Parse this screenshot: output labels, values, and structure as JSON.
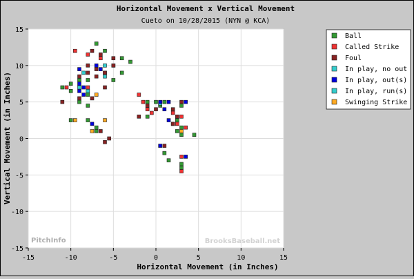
{
  "chart_data": {
    "type": "scatter",
    "title": "Horizontal Movement x Vertical Movement",
    "subtitle": "Cueto on 10/28/2015 (NYN @ KCA)",
    "xlabel": "Horizontal Movement (in Inches)",
    "ylabel": "Vertical Movement (in Inches)",
    "xlim": [
      -15,
      15
    ],
    "ylim": [
      -15,
      15
    ],
    "xticks": [
      "-15",
      "-10",
      "-5",
      "0",
      "5",
      "10",
      "15"
    ],
    "yticks": [
      "15",
      "10",
      "5",
      "0",
      "-5",
      "-10",
      "-15"
    ],
    "grid": true,
    "legend_position": "top-right, outside plot",
    "watermarks": {
      "left": "PitchInfo",
      "right": "BrooksBaseball.net"
    },
    "series": [
      {
        "name": "Ball",
        "color": "#339933",
        "points": [
          [
            -7,
            13
          ],
          [
            -6,
            12
          ],
          [
            -4,
            11
          ],
          [
            -3,
            10.5
          ],
          [
            -5,
            10
          ],
          [
            -4,
            9
          ],
          [
            -5,
            8
          ],
          [
            -6,
            9
          ],
          [
            -8,
            8
          ],
          [
            -9,
            8
          ],
          [
            -10,
            7.5
          ],
          [
            -11,
            7
          ],
          [
            -10,
            6.5
          ],
          [
            -8,
            6
          ],
          [
            -9,
            5
          ],
          [
            -8,
            4.5
          ],
          [
            -8,
            2.5
          ],
          [
            -10,
            2.5
          ],
          [
            -7,
            1.5
          ],
          [
            -7,
            1
          ],
          [
            0,
            5
          ],
          [
            -1,
            5
          ],
          [
            1,
            5
          ],
          [
            0.5,
            4.5
          ],
          [
            -1,
            3
          ],
          [
            2,
            2
          ],
          [
            2.5,
            2.5
          ],
          [
            3,
            1.5
          ],
          [
            2.5,
            1
          ],
          [
            3,
            0.5
          ],
          [
            4.5,
            0.5
          ],
          [
            1,
            -2
          ],
          [
            1.5,
            -3
          ],
          [
            3,
            -3.5
          ],
          [
            3,
            -4
          ],
          [
            3,
            4.5
          ]
        ]
      },
      {
        "name": "Called Strike",
        "color": "#ee3333",
        "points": [
          [
            -9.5,
            12
          ],
          [
            -8,
            11.5
          ],
          [
            -6.5,
            11
          ],
          [
            -10.5,
            7
          ],
          [
            -8,
            7
          ],
          [
            -2,
            6
          ],
          [
            -1.5,
            5
          ],
          [
            -1,
            4
          ],
          [
            -0.5,
            3.5
          ],
          [
            2,
            3.5
          ],
          [
            3,
            3
          ],
          [
            2.5,
            2
          ],
          [
            3.5,
            1.5
          ],
          [
            3,
            -2.5
          ],
          [
            3,
            -4.5
          ]
        ]
      },
      {
        "name": "Foul",
        "color": "#882222",
        "points": [
          [
            -7.5,
            12
          ],
          [
            -6.5,
            11.5
          ],
          [
            -8,
            10
          ],
          [
            -7,
            9.5
          ],
          [
            -6,
            9
          ],
          [
            -5,
            10
          ],
          [
            -5,
            11
          ],
          [
            -8,
            9
          ],
          [
            -9,
            8.5
          ],
          [
            -7,
            8.5
          ],
          [
            -6,
            7
          ],
          [
            -11,
            5
          ],
          [
            -9,
            5.5
          ],
          [
            -7.5,
            5.5
          ],
          [
            -6.5,
            1
          ],
          [
            -6,
            -0.5
          ],
          [
            -5.5,
            0
          ],
          [
            -1,
            4.5
          ],
          [
            0,
            4
          ],
          [
            2,
            4
          ],
          [
            2.5,
            3
          ],
          [
            2,
            2
          ],
          [
            -2,
            3
          ],
          [
            3,
            5
          ],
          [
            1,
            -1
          ]
        ]
      },
      {
        "name": "In play, no out",
        "color": "#33cccc",
        "points": [
          [
            -8.5,
            9
          ],
          [
            -6,
            10
          ],
          [
            -9,
            7
          ],
          [
            -8,
            6.5
          ],
          [
            -6,
            8.5
          ],
          [
            0.5,
            4.8
          ]
        ]
      },
      {
        "name": "In play, out(s)",
        "color": "#0000dd",
        "points": [
          [
            -9,
            9.5
          ],
          [
            -7,
            10
          ],
          [
            -6.5,
            9.5
          ],
          [
            -9,
            7.5
          ],
          [
            -9,
            6.5
          ],
          [
            -8.5,
            7
          ],
          [
            -8.5,
            6
          ],
          [
            -7.5,
            2
          ],
          [
            0.5,
            5
          ],
          [
            1.5,
            5
          ],
          [
            1,
            4
          ],
          [
            1.5,
            2.5
          ],
          [
            3.5,
            5
          ],
          [
            3.5,
            -2.5
          ],
          [
            0.5,
            -1
          ]
        ]
      },
      {
        "name": "In play, run(s)",
        "color": "#33cccc",
        "points": []
      },
      {
        "name": "Swinging Strike",
        "color": "#ffaa22",
        "points": [
          [
            -9.5,
            2.5
          ],
          [
            -6,
            2.5
          ],
          [
            -7.5,
            1
          ],
          [
            -7,
            6
          ],
          [
            3,
            1
          ]
        ]
      }
    ]
  }
}
